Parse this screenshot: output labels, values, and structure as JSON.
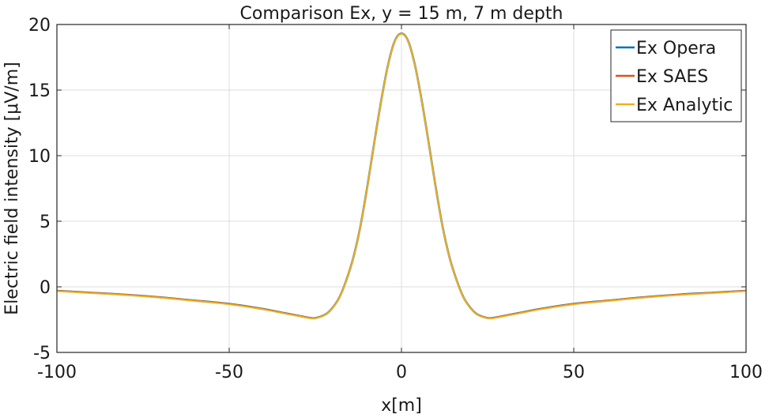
{
  "chart_data": {
    "type": "line",
    "title": "Comparison Ex, y = 15 m, 7 m depth",
    "xlabel": "x[m]",
    "ylabel": "Electric field intensity [μV/m]",
    "xlim": [
      -100,
      100
    ],
    "ylim": [
      -5,
      20
    ],
    "xticks": [
      -100,
      -50,
      0,
      50,
      100
    ],
    "yticks": [
      -5,
      0,
      5,
      10,
      15,
      20
    ],
    "grid": true,
    "legend_position": "top-right",
    "x": [
      -100,
      -90,
      -80,
      -70,
      -60,
      -50,
      -40,
      -35,
      -30,
      -27,
      -25,
      -22,
      -20,
      -18,
      -16,
      -14,
      -12,
      -10,
      -8,
      -6,
      -4,
      -2,
      0,
      2,
      4,
      6,
      8,
      10,
      12,
      14,
      16,
      18,
      20,
      22,
      25,
      27,
      30,
      35,
      40,
      50,
      60,
      70,
      80,
      90,
      100
    ],
    "series": [
      {
        "name": "Ex Opera",
        "color": "#0072BD",
        "values": [
          -0.3,
          -0.45,
          -0.6,
          -0.8,
          -1.05,
          -1.3,
          -1.7,
          -1.95,
          -2.2,
          -2.35,
          -2.38,
          -2.1,
          -1.6,
          -0.8,
          0.5,
          2.2,
          4.5,
          7.5,
          10.8,
          14.0,
          16.8,
          18.7,
          19.3,
          18.7,
          16.8,
          14.0,
          10.8,
          7.5,
          4.5,
          2.2,
          0.5,
          -0.8,
          -1.6,
          -2.1,
          -2.38,
          -2.35,
          -2.2,
          -1.95,
          -1.7,
          -1.3,
          -1.05,
          -0.8,
          -0.6,
          -0.45,
          -0.3
        ]
      },
      {
        "name": "Ex SAES",
        "color": "#D95319",
        "values": [
          -0.3,
          -0.45,
          -0.6,
          -0.8,
          -1.05,
          -1.3,
          -1.7,
          -1.95,
          -2.2,
          -2.35,
          -2.38,
          -2.1,
          -1.6,
          -0.8,
          0.5,
          2.2,
          4.5,
          7.5,
          10.8,
          14.0,
          16.8,
          18.7,
          19.3,
          18.7,
          16.8,
          14.0,
          10.8,
          7.5,
          4.5,
          2.2,
          0.5,
          -0.8,
          -1.6,
          -2.1,
          -2.38,
          -2.35,
          -2.2,
          -1.95,
          -1.7,
          -1.3,
          -1.05,
          -0.8,
          -0.6,
          -0.45,
          -0.3
        ]
      },
      {
        "name": "Ex Analytic",
        "color": "#EDB120",
        "values": [
          -0.33,
          -0.48,
          -0.63,
          -0.83,
          -1.08,
          -1.33,
          -1.73,
          -1.98,
          -2.23,
          -2.38,
          -2.4,
          -2.12,
          -1.62,
          -0.82,
          0.48,
          2.18,
          4.48,
          7.48,
          10.78,
          13.98,
          16.78,
          18.68,
          19.28,
          18.68,
          16.78,
          13.98,
          10.78,
          7.48,
          4.48,
          2.18,
          0.48,
          -0.82,
          -1.62,
          -2.12,
          -2.4,
          -2.38,
          -2.23,
          -1.98,
          -1.73,
          -1.33,
          -1.08,
          -0.83,
          -0.63,
          -0.48,
          -0.33
        ]
      }
    ]
  }
}
